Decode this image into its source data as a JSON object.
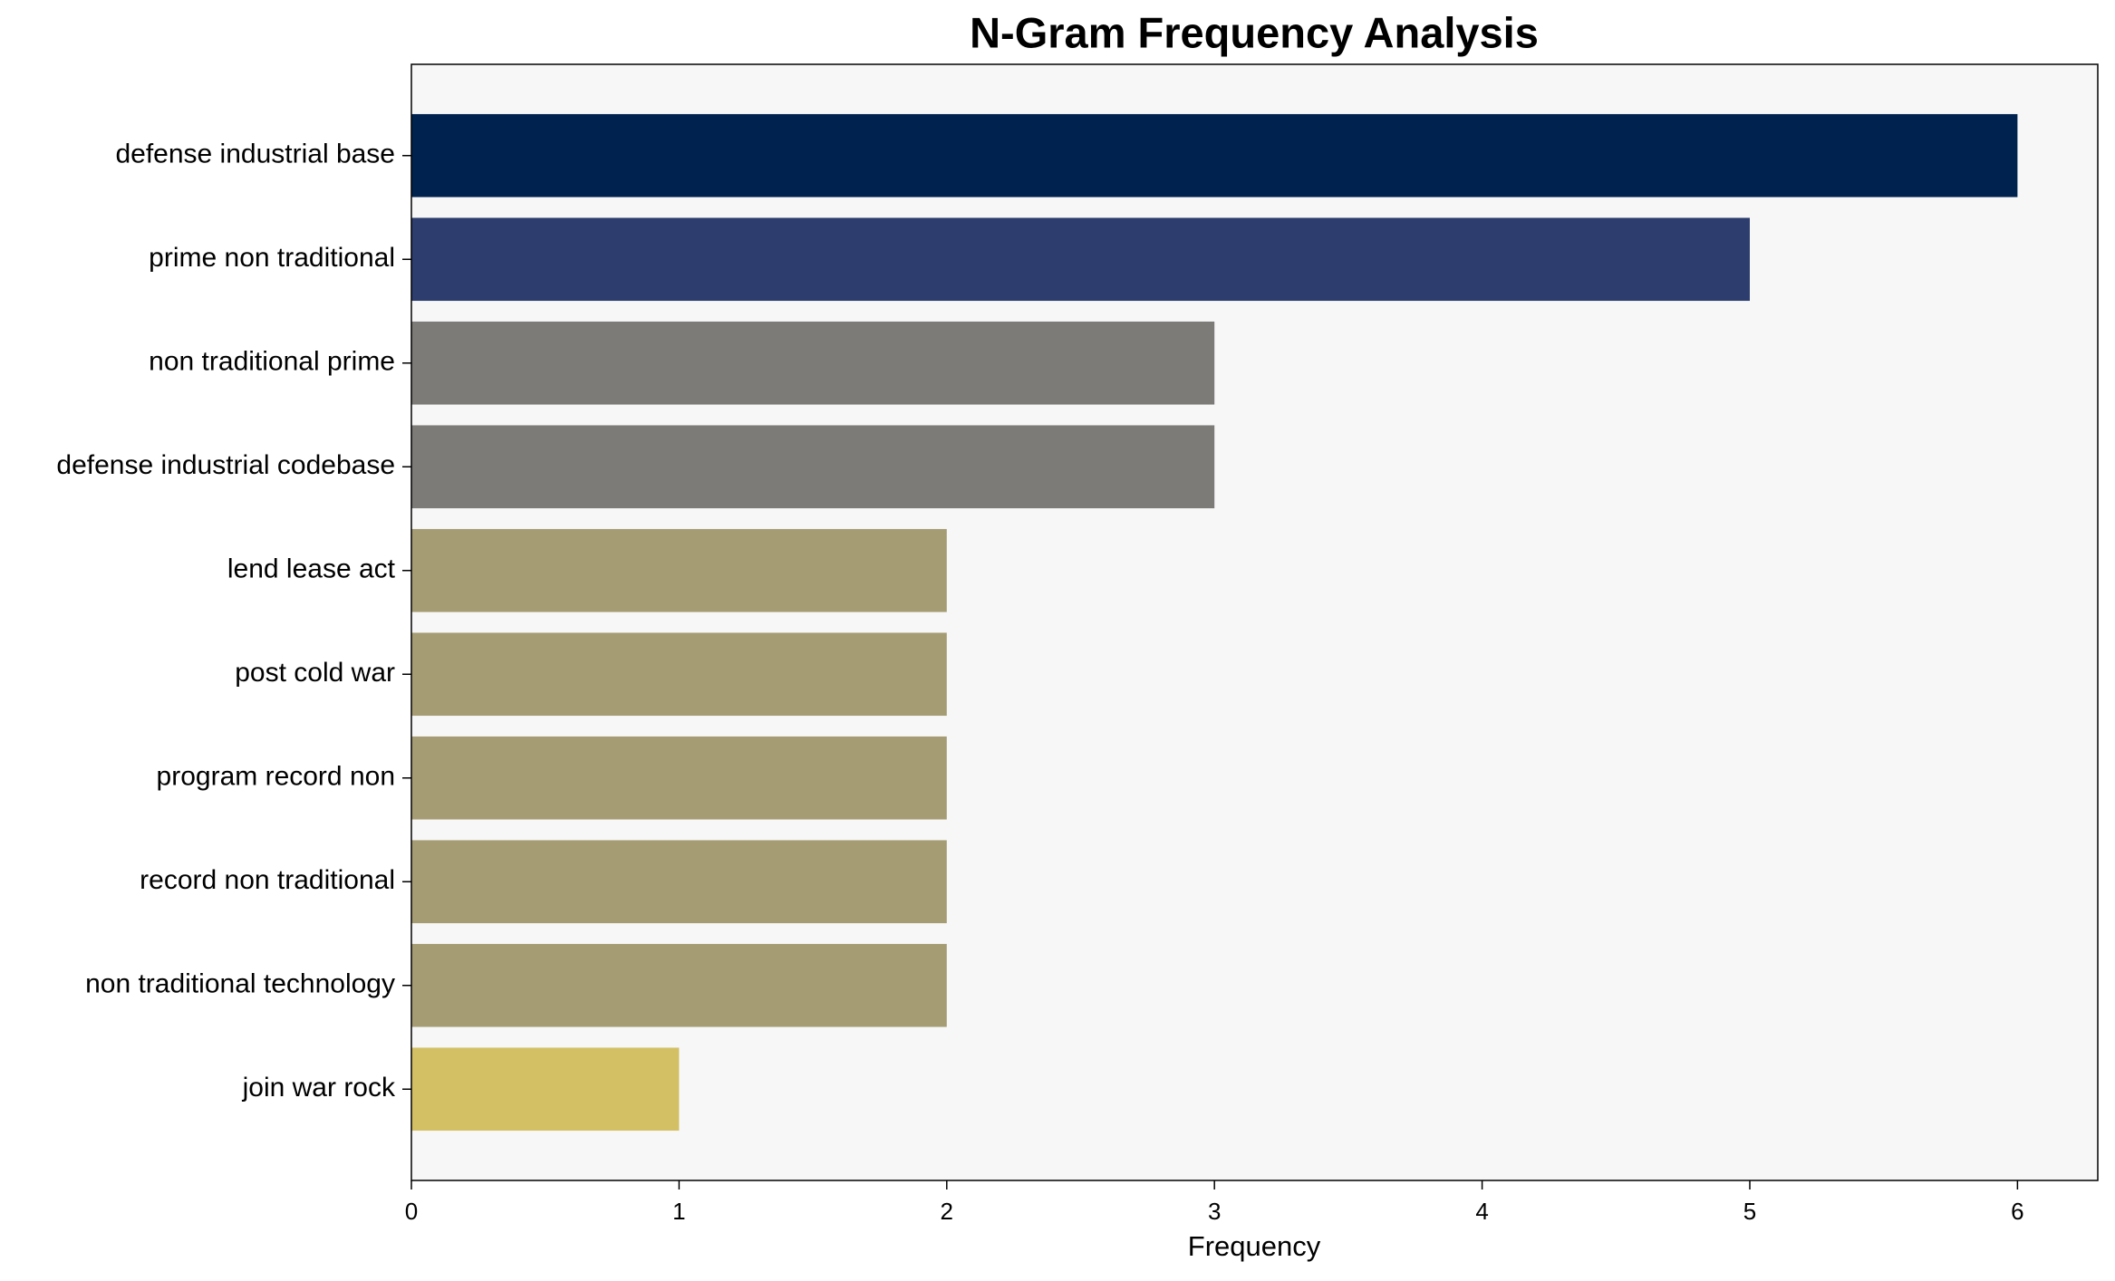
{
  "chart_data": {
    "type": "barh",
    "title": "N-Gram Frequency Analysis",
    "xlabel": "Frequency",
    "categories": [
      "defense industrial base",
      "prime non traditional",
      "non traditional prime",
      "defense industrial codebase",
      "lend lease act",
      "post cold war",
      "program record non",
      "record non traditional",
      "non traditional technology",
      "join war rock"
    ],
    "values": [
      6,
      5,
      3,
      3,
      2,
      2,
      2,
      2,
      2,
      1
    ],
    "colors": [
      "#00224e",
      "#2c3d6e",
      "#7c7b78",
      "#7c7b78",
      "#a59c74",
      "#a59c74",
      "#a59c74",
      "#a59c74",
      "#a59c74",
      "#d3c064"
    ],
    "xlim": [
      0,
      6.3
    ],
    "xticks": [
      0,
      1,
      2,
      3,
      4,
      5,
      6
    ],
    "grid": false
  }
}
